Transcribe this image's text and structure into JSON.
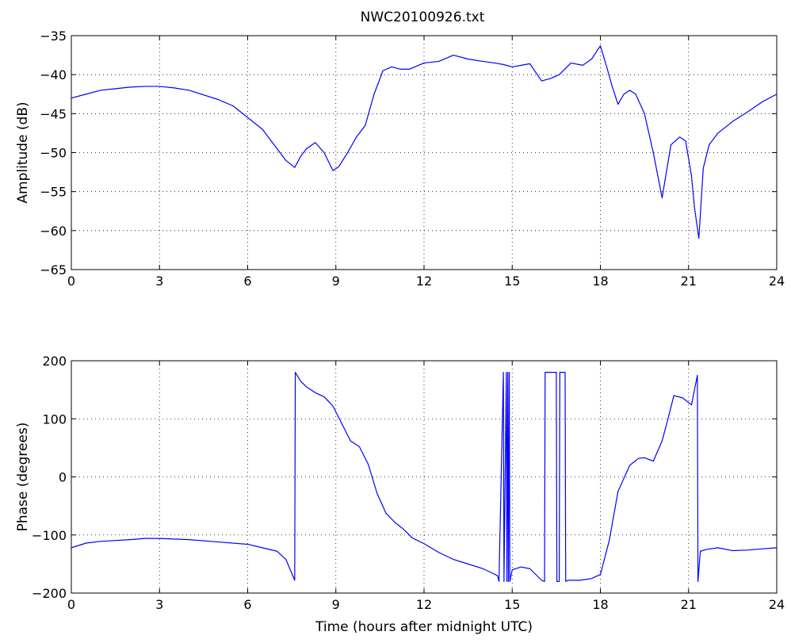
{
  "title": "NWC20100926.txt",
  "chart_data": [
    {
      "type": "line",
      "ylabel": "Amplitude (dB)",
      "xlabel": "",
      "xlim": [
        0,
        24
      ],
      "ylim": [
        -65,
        -35
      ],
      "xticks": [
        "0",
        "3",
        "6",
        "9",
        "12",
        "15",
        "18",
        "21",
        "24"
      ],
      "yticks": [
        "-35",
        "-40",
        "-45",
        "-50",
        "-55",
        "-60",
        "-65"
      ],
      "grid": true,
      "line_color": "#0000ff",
      "series": [
        {
          "x": [
            0,
            0.5,
            1,
            1.5,
            2,
            2.5,
            3,
            3.5,
            4,
            4.5,
            5,
            5.5,
            6,
            6.5,
            7,
            7.3,
            7.6,
            7.8,
            8,
            8.3,
            8.6,
            8.9,
            9.1,
            9.4,
            9.7,
            10,
            10.3,
            10.6,
            10.9,
            11.2,
            11.5,
            12,
            12.5,
            13,
            13.5,
            14,
            14.4,
            14.7,
            15,
            15.3,
            15.6,
            16,
            16.3,
            16.6,
            17,
            17.4,
            17.7,
            18,
            18.2,
            18.4,
            18.6,
            18.8,
            19,
            19.2,
            19.5,
            19.8,
            20.1,
            20.4,
            20.7,
            20.9,
            21.1,
            21.2,
            21.35,
            21.5,
            21.7,
            22,
            22.5,
            23,
            23.5,
            24
          ],
          "y": [
            -43,
            -42.5,
            -42,
            -41.8,
            -41.6,
            -41.5,
            -41.5,
            -41.7,
            -42,
            -42.6,
            -43.2,
            -44,
            -45.5,
            -47,
            -49.5,
            -51,
            -51.9,
            -50.5,
            -49.5,
            -48.7,
            -50,
            -52.3,
            -51.8,
            -50,
            -48,
            -46.5,
            -42.5,
            -39.5,
            -39,
            -39.3,
            -39.3,
            -38.5,
            -38.3,
            -37.5,
            -38,
            -38.3,
            -38.5,
            -38.7,
            -39,
            -38.8,
            -38.6,
            -40.8,
            -40.5,
            -40,
            -38.5,
            -38.8,
            -38,
            -36.3,
            -38.8,
            -41.5,
            -43.8,
            -42.5,
            -42,
            -42.5,
            -45,
            -50,
            -55.8,
            -49,
            -48,
            -48.5,
            -53,
            -57,
            -61,
            -52,
            -49,
            -47.5,
            -46,
            -44.8,
            -43.5,
            -42.5
          ]
        }
      ]
    },
    {
      "type": "line",
      "ylabel": "Phase (degrees)",
      "xlabel": "Time (hours after midnight UTC)",
      "xlim": [
        0,
        24
      ],
      "ylim": [
        -200,
        200
      ],
      "xticks": [
        "0",
        "3",
        "6",
        "9",
        "12",
        "15",
        "18",
        "21",
        "24"
      ],
      "yticks": [
        "200",
        "100",
        "0",
        "-100",
        "-200"
      ],
      "grid": true,
      "line_color": "#0000ff",
      "series": [
        {
          "x": [
            0,
            0.5,
            1,
            2,
            2.5,
            3,
            4,
            5,
            6,
            6.5,
            7,
            7.3,
            7.6,
            7.62,
            7.8,
            8,
            8.3,
            8.6,
            8.9,
            9.2,
            9.5,
            9.8,
            10.1,
            10.4,
            10.7,
            11,
            11.3,
            11.6,
            12,
            12.5,
            13,
            13.5,
            14,
            14.3,
            14.5,
            14.55,
            14.7,
            14.72,
            14.8,
            14.82,
            14.85,
            14.87,
            14.9,
            14.92,
            15,
            15.3,
            15.6,
            16,
            16.1,
            16.12,
            16.5,
            16.52,
            16.6,
            16.62,
            16.8,
            16.82,
            16.9,
            17.3,
            17.7,
            18,
            18.3,
            18.6,
            19,
            19.3,
            19.5,
            19.8,
            20.1,
            20.3,
            20.5,
            20.8,
            21.1,
            21.3,
            21.32,
            21.4,
            21.6,
            22,
            22.5,
            23,
            23.5,
            24
          ],
          "y": [
            -122,
            -114,
            -111,
            -108,
            -106,
            -106,
            -108,
            -112,
            -116,
            -122,
            -128,
            -142,
            -178,
            180,
            165,
            155,
            145,
            138,
            122,
            92,
            62,
            52,
            22,
            -28,
            -62,
            -78,
            -90,
            -105,
            -115,
            -130,
            -142,
            -150,
            -158,
            -165,
            -170,
            -180,
            180,
            -180,
            180,
            -180,
            180,
            -180,
            180,
            -180,
            -160,
            -155,
            -158,
            -178,
            -180,
            180,
            180,
            -180,
            -180,
            180,
            180,
            -180,
            -178,
            -178,
            -175,
            -168,
            -110,
            -25,
            20,
            32,
            33,
            27,
            62,
            100,
            140,
            136,
            124,
            175,
            -180,
            -128,
            -125,
            -122,
            -127,
            -126,
            -124,
            -122
          ]
        }
      ]
    }
  ]
}
